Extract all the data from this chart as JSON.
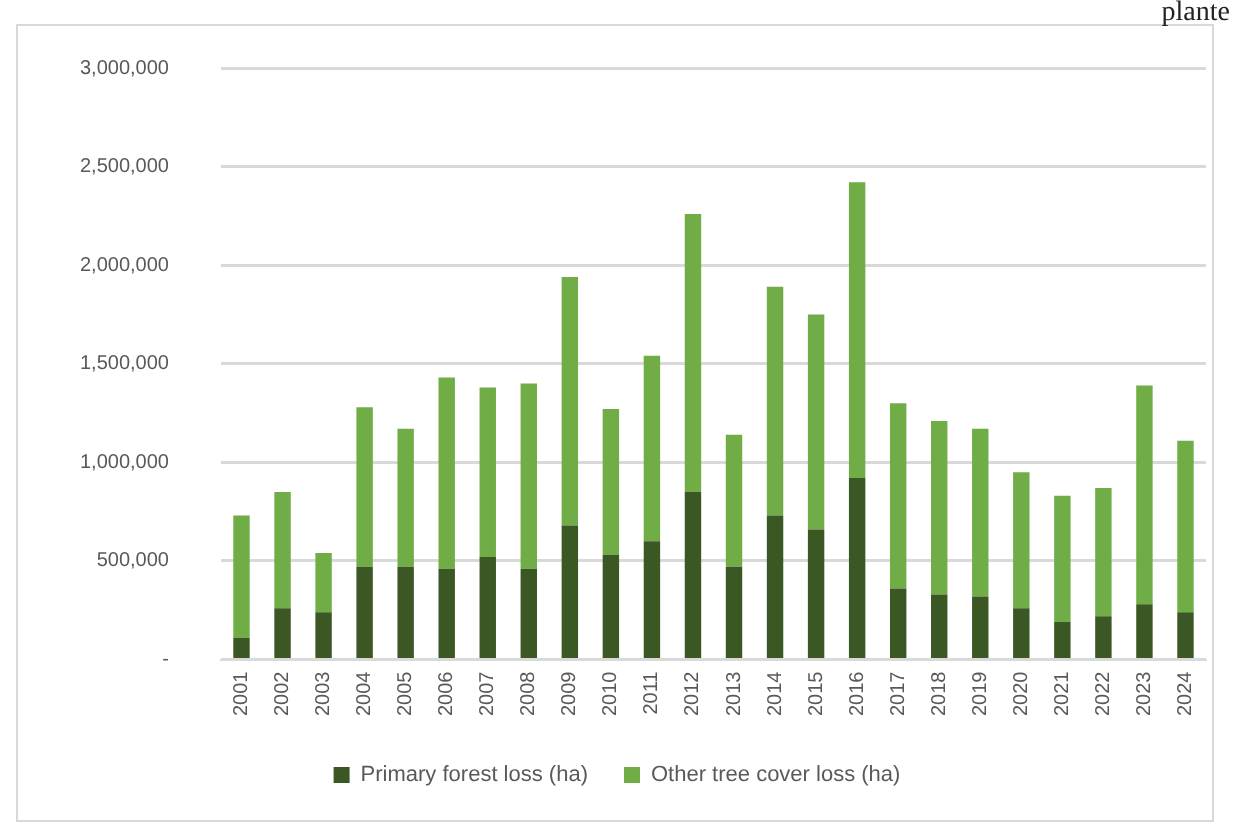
{
  "chart_data": {
    "type": "bar",
    "stacked": true,
    "categories": [
      "2001",
      "2002",
      "2003",
      "2004",
      "2005",
      "2006",
      "2007",
      "2008",
      "2009",
      "2010",
      "2011",
      "2012",
      "2013",
      "2014",
      "2015",
      "2016",
      "2017",
      "2018",
      "2019",
      "2020",
      "2021",
      "2022",
      "2023",
      "2024"
    ],
    "series": [
      {
        "name": "Primary forest loss (ha)",
        "color": "#3a5724",
        "values": [
          110000,
          260000,
          240000,
          470000,
          470000,
          460000,
          520000,
          460000,
          680000,
          530000,
          600000,
          850000,
          470000,
          730000,
          660000,
          920000,
          360000,
          330000,
          320000,
          260000,
          190000,
          220000,
          280000,
          240000
        ]
      },
      {
        "name": "Other tree cover loss (ha)",
        "color": "#70ad47",
        "values": [
          620000,
          590000,
          300000,
          810000,
          700000,
          970000,
          860000,
          940000,
          1260000,
          740000,
          940000,
          1410000,
          670000,
          1160000,
          1090000,
          1500000,
          940000,
          880000,
          850000,
          690000,
          640000,
          650000,
          1110000,
          870000
        ]
      }
    ],
    "ylim": [
      0,
      3000000
    ],
    "yticks": [
      {
        "value": 0,
        "label": "-"
      },
      {
        "value": 500000,
        "label": "500,000"
      },
      {
        "value": 1000000,
        "label": "1,000,000"
      },
      {
        "value": 1500000,
        "label": "1,500,000"
      },
      {
        "value": 2000000,
        "label": "2,000,000"
      },
      {
        "value": 2500000,
        "label": "2,500,000"
      },
      {
        "value": 3000000,
        "label": "3,000,000"
      }
    ],
    "grid": "y",
    "legend": "bottom",
    "annotations": [
      "plante"
    ]
  }
}
